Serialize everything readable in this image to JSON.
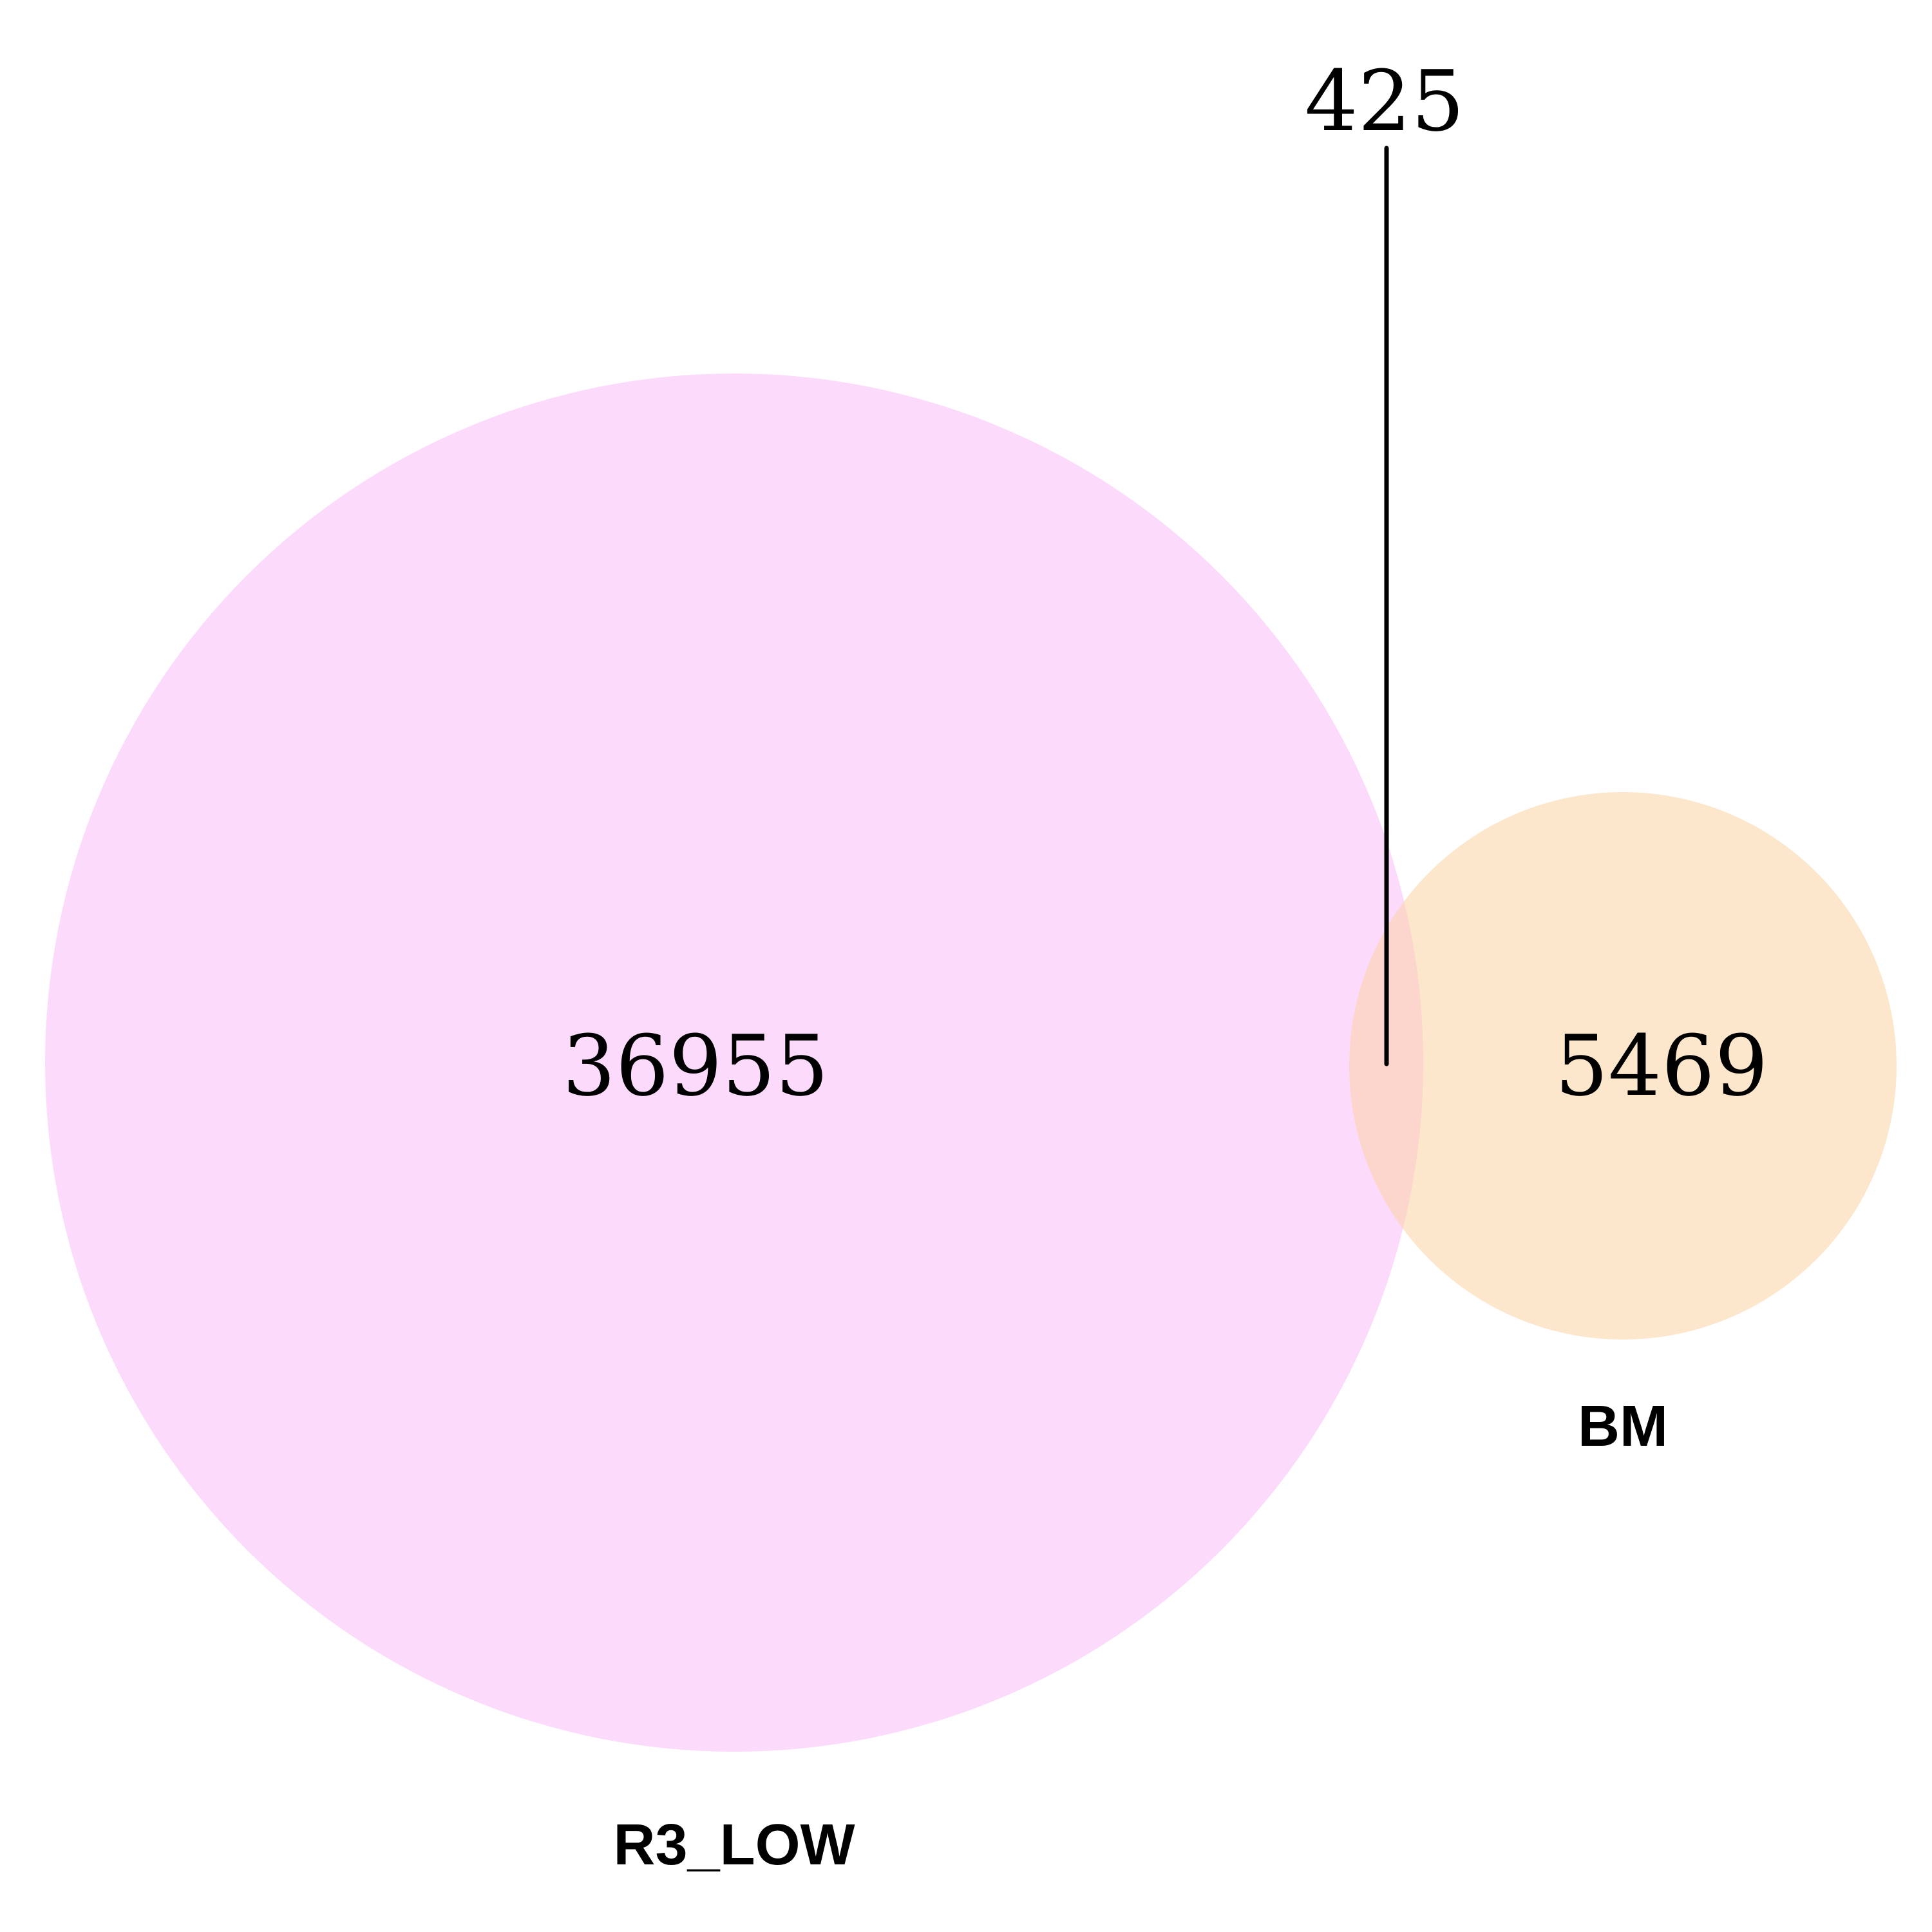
{
  "sets": [
    {
      "name": "R3_LOW",
      "only_count": "36955",
      "color": "#fcdafc"
    },
    {
      "name": "BM",
      "only_count": "5469",
      "color": "#fce6cc"
    }
  ],
  "intersection": {
    "count": "425",
    "color": "#fcd5cc"
  },
  "line_color": "#000000"
}
